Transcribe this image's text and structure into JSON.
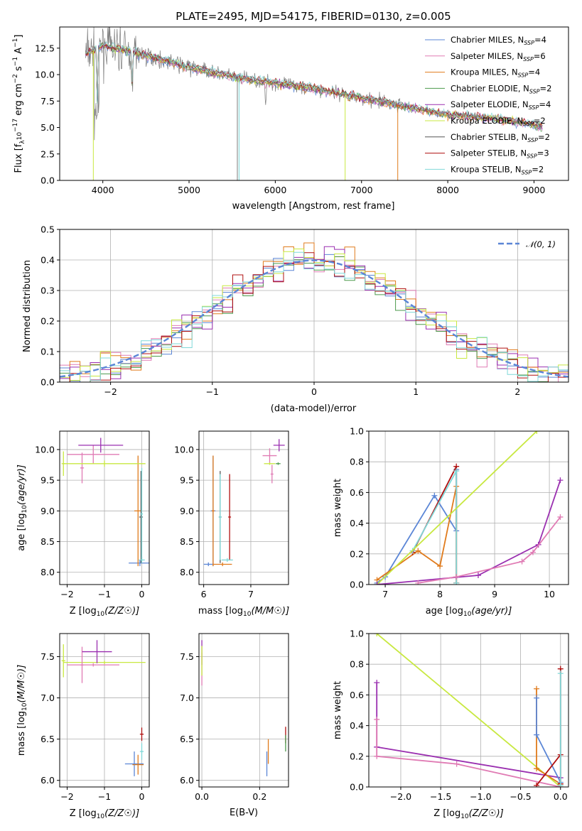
{
  "chart_data": [
    {
      "id": "spectrum",
      "type": "line",
      "title": "PLATE=2495, MJD=54175, FIBERID=0130, z=0.005",
      "xlabel": "wavelength [Angstrom, rest frame]",
      "ylabel": "Flux [f_λ 10^-17 erg cm^-2 s^-1 A^-1]",
      "xlim": [
        3500,
        9400
      ],
      "ylim": [
        0,
        14.5
      ],
      "xticks": [
        4000,
        5000,
        6000,
        7000,
        8000,
        9000
      ],
      "yticks": [
        0.0,
        2.5,
        5.0,
        7.5,
        10.0,
        12.5
      ],
      "grid": false,
      "legend_position": "top-right",
      "continuum": [
        [
          3800,
          12.0
        ],
        [
          4000,
          12.7
        ],
        [
          4200,
          12.4
        ],
        [
          4500,
          11.8
        ],
        [
          5000,
          10.7
        ],
        [
          5500,
          9.8
        ],
        [
          6000,
          9.2
        ],
        [
          6500,
          8.6
        ],
        [
          7000,
          7.8
        ],
        [
          7500,
          7.0
        ],
        [
          8000,
          6.2
        ],
        [
          8500,
          5.9
        ],
        [
          9000,
          5.3
        ],
        [
          9100,
          5.0
        ]
      ],
      "series": [
        {
          "name": "Chabrier MILES, N_SSP=4",
          "color": "#5b86d6"
        },
        {
          "name": "Salpeter MILES, N_SSP=6",
          "color": "#e07bb4"
        },
        {
          "name": "Kroupa MILES, N_SSP=4",
          "color": "#e07b1c"
        },
        {
          "name": "Chabrier ELODIE, N_SSP=2",
          "color": "#4c9a4c"
        },
        {
          "name": "Salpeter ELODIE, N_SSP=4",
          "color": "#9a2fb0"
        },
        {
          "name": "Kroupa ELODIE, N_SSP=2",
          "color": "#c8e840"
        },
        {
          "name": "Chabrier STELIB, N_SSP=2",
          "color": "#555555"
        },
        {
          "name": "Salpeter STELIB, N_SSP=3",
          "color": "#b01010"
        },
        {
          "name": "Kroupa STELIB, N_SSP=2",
          "color": "#7fd8d8"
        }
      ]
    },
    {
      "id": "residuals",
      "type": "histogram",
      "xlabel": "(data-model)/error",
      "ylabel": "Normed distribution",
      "xlim": [
        -2.5,
        2.5
      ],
      "ylim": [
        0,
        0.5
      ],
      "xticks": [
        -2,
        -1,
        0,
        1,
        2
      ],
      "yticks": [
        0.0,
        0.1,
        0.2,
        0.3,
        0.4,
        0.5
      ],
      "grid": true,
      "legend_position": "top-right",
      "legend": "𝒩(0, 1)",
      "reference_color": "#5b86d6",
      "bin_width": 0.1
    },
    {
      "id": "age-vs-Z",
      "type": "scatter",
      "xlabel": "Z [log10(Z/Z☉)]",
      "ylabel": "age [log10(age/yr)]",
      "xlim": [
        -2.2,
        0.2
      ],
      "ylim": [
        7.8,
        10.3
      ],
      "xticks": [
        -2,
        -1,
        0
      ],
      "yticks": [
        8.0,
        8.5,
        9.0,
        9.5,
        10.0
      ],
      "grid": true,
      "points": [
        {
          "x": -0.05,
          "y": 8.15,
          "xerr": 0.3,
          "yerr": 0.05,
          "color": "#5b86d6"
        },
        {
          "x": -1.3,
          "y": 9.92,
          "xerr": 0.7,
          "yerr": 0.15,
          "color": "#e07bb4"
        },
        {
          "x": -1.6,
          "y": 9.7,
          "xerr": 0.05,
          "yerr": 0.25,
          "color": "#e07bb4"
        },
        {
          "x": -0.1,
          "y": 9.0,
          "xerr": 0.1,
          "yerr": 0.9,
          "color": "#e07b1c"
        },
        {
          "x": -1.1,
          "y": 10.07,
          "xerr": 0.6,
          "yerr": 0.12,
          "color": "#9a2fb0"
        },
        {
          "x": -1.0,
          "y": 9.77,
          "xerr": 1.1,
          "yerr": 0.05,
          "color": "#c8e840"
        },
        {
          "x": -2.1,
          "y": 9.77,
          "xerr": 0.05,
          "yerr": 0.2,
          "color": "#c8e840"
        },
        {
          "x": -0.02,
          "y": 8.9,
          "xerr": 0.05,
          "yerr": 0.75,
          "color": "#555555"
        },
        {
          "x": 0.0,
          "y": 8.2,
          "xerr": 0.08,
          "yerr": 0.05,
          "color": "#7fd8d8"
        },
        {
          "x": 0.0,
          "y": 8.95,
          "xerr": 0.03,
          "yerr": 0.75,
          "color": "#7fd8d8"
        }
      ]
    },
    {
      "id": "age-vs-mass",
      "type": "scatter",
      "xlabel": "mass [log10(M/M☉)]",
      "ylabel": "",
      "xlim": [
        5.9,
        7.8
      ],
      "ylim": [
        7.8,
        10.3
      ],
      "xticks": [
        6,
        7
      ],
      "yticks": [
        8.0,
        8.5,
        9.0,
        9.5,
        10.0
      ],
      "grid": true,
      "points": [
        {
          "x": 6.2,
          "y": 9.0,
          "xerr": 0.05,
          "yerr": 0.9,
          "color": "#5b86d6"
        },
        {
          "x": 6.1,
          "y": 8.13,
          "xerr": 0.1,
          "yerr": 0.03,
          "color": "#5b86d6"
        },
        {
          "x": 6.4,
          "y": 8.13,
          "xerr": 0.2,
          "yerr": 0.03,
          "color": "#e07b1c"
        },
        {
          "x": 6.2,
          "y": 9.0,
          "xerr": 0.03,
          "yerr": 0.9,
          "color": "#e07b1c"
        },
        {
          "x": 6.35,
          "y": 8.9,
          "xerr": 0.03,
          "yerr": 0.75,
          "color": "#555555"
        },
        {
          "x": 6.35,
          "y": 8.9,
          "xerr": 0.03,
          "yerr": 0.7,
          "color": "#7fd8d8"
        },
        {
          "x": 6.55,
          "y": 8.9,
          "xerr": 0.03,
          "yerr": 0.7,
          "color": "#b01010"
        },
        {
          "x": 6.5,
          "y": 8.2,
          "xerr": 0.12,
          "yerr": 0.03,
          "color": "#7fd8d8"
        },
        {
          "x": 7.6,
          "y": 10.07,
          "xerr": 0.12,
          "yerr": 0.1,
          "color": "#9a2fb0"
        },
        {
          "x": 7.4,
          "y": 9.9,
          "xerr": 0.15,
          "yerr": 0.12,
          "color": "#e07bb4"
        },
        {
          "x": 7.45,
          "y": 9.6,
          "xerr": 0.03,
          "yerr": 0.15,
          "color": "#e07bb4"
        },
        {
          "x": 7.4,
          "y": 9.77,
          "xerr": 0.12,
          "yerr": 0.02,
          "color": "#c8e840"
        },
        {
          "x": 7.58,
          "y": 9.77,
          "xerr": 0.05,
          "yerr": 0.02,
          "color": "#4c9a4c"
        }
      ]
    },
    {
      "id": "weight-vs-age",
      "type": "line",
      "xlabel": "age [log10(age/yr)]",
      "ylabel": "mass weight",
      "xlim": [
        6.7,
        10.35
      ],
      "ylim": [
        0,
        1.0
      ],
      "xticks": [
        7,
        8,
        9,
        10
      ],
      "yticks": [
        0.0,
        0.2,
        0.4,
        0.6,
        0.8,
        1.0
      ],
      "grid": true,
      "series": [
        {
          "color": "#5b86d6",
          "x": [
            6.85,
            7.0,
            7.9,
            8.3,
            8.3
          ],
          "y": [
            0.01,
            0.05,
            0.58,
            0.35,
            0.75
          ]
        },
        {
          "color": "#e07b1c",
          "x": [
            6.85,
            7.6,
            8.0,
            8.3,
            8.3
          ],
          "y": [
            0.03,
            0.22,
            0.12,
            0.64,
            0.01
          ]
        },
        {
          "color": "#b01010",
          "x": [
            7.5,
            8.3,
            8.3
          ],
          "y": [
            0.21,
            0.77,
            0.01
          ]
        },
        {
          "color": "#7fd8d8",
          "x": [
            7.5,
            8.3,
            8.3
          ],
          "y": [
            0.22,
            0.74,
            0.01
          ]
        },
        {
          "color": "#c8e840",
          "x": [
            6.85,
            9.77
          ],
          "y": [
            0.0,
            1.0
          ]
        },
        {
          "color": "#9a2fb0",
          "x": [
            6.85,
            8.7,
            9.8,
            10.2
          ],
          "y": [
            0.0,
            0.06,
            0.26,
            0.68
          ]
        },
        {
          "color": "#e07bb4",
          "x": [
            7.6,
            8.3,
            9.5,
            9.7,
            10.2
          ],
          "y": [
            0.01,
            0.05,
            0.15,
            0.21,
            0.44
          ]
        }
      ]
    },
    {
      "id": "mass-vs-Z",
      "type": "scatter",
      "xlabel": "Z [log10(Z/Z☉)]",
      "ylabel": "mass [log10(M/M☉)]",
      "xlim": [
        -2.2,
        0.2
      ],
      "ylim": [
        5.92,
        7.78
      ],
      "xticks": [
        -2,
        -1,
        0
      ],
      "yticks": [
        6.0,
        6.5,
        7.0,
        7.5
      ],
      "grid": true,
      "points": [
        {
          "x": -1.0,
          "y": 7.43,
          "xerr": 1.1,
          "yerr": 0.02,
          "color": "#c8e840"
        },
        {
          "x": -2.1,
          "y": 7.45,
          "xerr": 0.05,
          "yerr": 0.2,
          "color": "#c8e840"
        },
        {
          "x": -1.3,
          "y": 7.4,
          "xerr": 0.7,
          "yerr": 0.02,
          "color": "#e07bb4"
        },
        {
          "x": -1.6,
          "y": 7.4,
          "xerr": 0.05,
          "yerr": 0.22,
          "color": "#e07bb4"
        },
        {
          "x": -1.2,
          "y": 7.56,
          "xerr": 0.4,
          "yerr": 0.14,
          "color": "#9a2fb0"
        },
        {
          "x": -0.2,
          "y": 6.2,
          "xerr": 0.25,
          "yerr": 0.15,
          "color": "#5b86d6"
        },
        {
          "x": -0.1,
          "y": 6.19,
          "xerr": 0.15,
          "yerr": 0.12,
          "color": "#e07b1c"
        },
        {
          "x": 0.0,
          "y": 6.56,
          "xerr": 0.05,
          "yerr": 0.08,
          "color": "#b01010"
        },
        {
          "x": 0.0,
          "y": 6.35,
          "xerr": 0.05,
          "yerr": 0.1,
          "color": "#7fd8d8"
        }
      ]
    },
    {
      "id": "mass-vs-ebv",
      "type": "scatter",
      "xlabel": "E(B-V)",
      "ylabel": "",
      "xlim": [
        -0.01,
        0.3
      ],
      "ylim": [
        5.92,
        7.78
      ],
      "xticks": [
        0.0,
        0.2
      ],
      "yticks": [
        6.0,
        6.5,
        7.0,
        7.5
      ],
      "grid": true,
      "points": [
        {
          "x": 0.0,
          "y": 7.55,
          "xerr": 0.002,
          "yerr": 0.15,
          "color": "#9a2fb0"
        },
        {
          "x": 0.0,
          "y": 7.35,
          "xerr": 0.002,
          "yerr": 0.2,
          "color": "#e07bb4"
        },
        {
          "x": 0.0,
          "y": 7.45,
          "xerr": 0.002,
          "yerr": 0.18,
          "color": "#c8e840"
        },
        {
          "x": 0.225,
          "y": 6.2,
          "xerr": 0.002,
          "yerr": 0.15,
          "color": "#5b86d6"
        },
        {
          "x": 0.23,
          "y": 6.35,
          "xerr": 0.002,
          "yerr": 0.15,
          "color": "#e07b1c"
        },
        {
          "x": 0.29,
          "y": 6.55,
          "xerr": 0.002,
          "yerr": 0.1,
          "color": "#b01010"
        },
        {
          "x": 0.29,
          "y": 6.45,
          "xerr": 0.002,
          "yerr": 0.1,
          "color": "#4c9a4c"
        }
      ]
    },
    {
      "id": "weight-vs-Z",
      "type": "line",
      "xlabel": "Z [log10(Z/Z☉)]",
      "ylabel": "mass weight",
      "xlim": [
        -2.4,
        0.1
      ],
      "ylim": [
        0,
        1.0
      ],
      "xticks": [
        -2.0,
        -1.5,
        -1.0,
        -0.5,
        0.0
      ],
      "yticks": [
        0.0,
        0.2,
        0.4,
        0.6,
        0.8,
        1.0
      ],
      "grid": true,
      "series": [
        {
          "color": "#c8e840",
          "x": [
            -2.3,
            0.0
          ],
          "y": [
            1.0,
            0.0
          ]
        },
        {
          "color": "#9a2fb0",
          "x": [
            -2.3,
            -2.3,
            -2.3,
            0.0
          ],
          "y": [
            0.68,
            0.26,
            0.26,
            0.06
          ]
        },
        {
          "color": "#e07bb4",
          "x": [
            -2.3,
            -2.3,
            -1.3,
            0.0
          ],
          "y": [
            0.44,
            0.2,
            0.15,
            0.0
          ]
        },
        {
          "color": "#e07b1c",
          "x": [
            -0.3,
            -0.3,
            0.0
          ],
          "y": [
            0.64,
            0.12,
            0.02
          ]
        },
        {
          "color": "#5b86d6",
          "x": [
            -0.3,
            -0.3,
            0.0
          ],
          "y": [
            0.58,
            0.34,
            0.03
          ]
        },
        {
          "color": "#b01010",
          "x": [
            -0.3,
            0.0,
            0.0,
            0.0
          ],
          "y": [
            0.01,
            0.21,
            0.77,
            0.02
          ]
        },
        {
          "color": "#7fd8d8",
          "x": [
            0.0,
            0.0
          ],
          "y": [
            0.74,
            0.01
          ]
        }
      ]
    }
  ]
}
